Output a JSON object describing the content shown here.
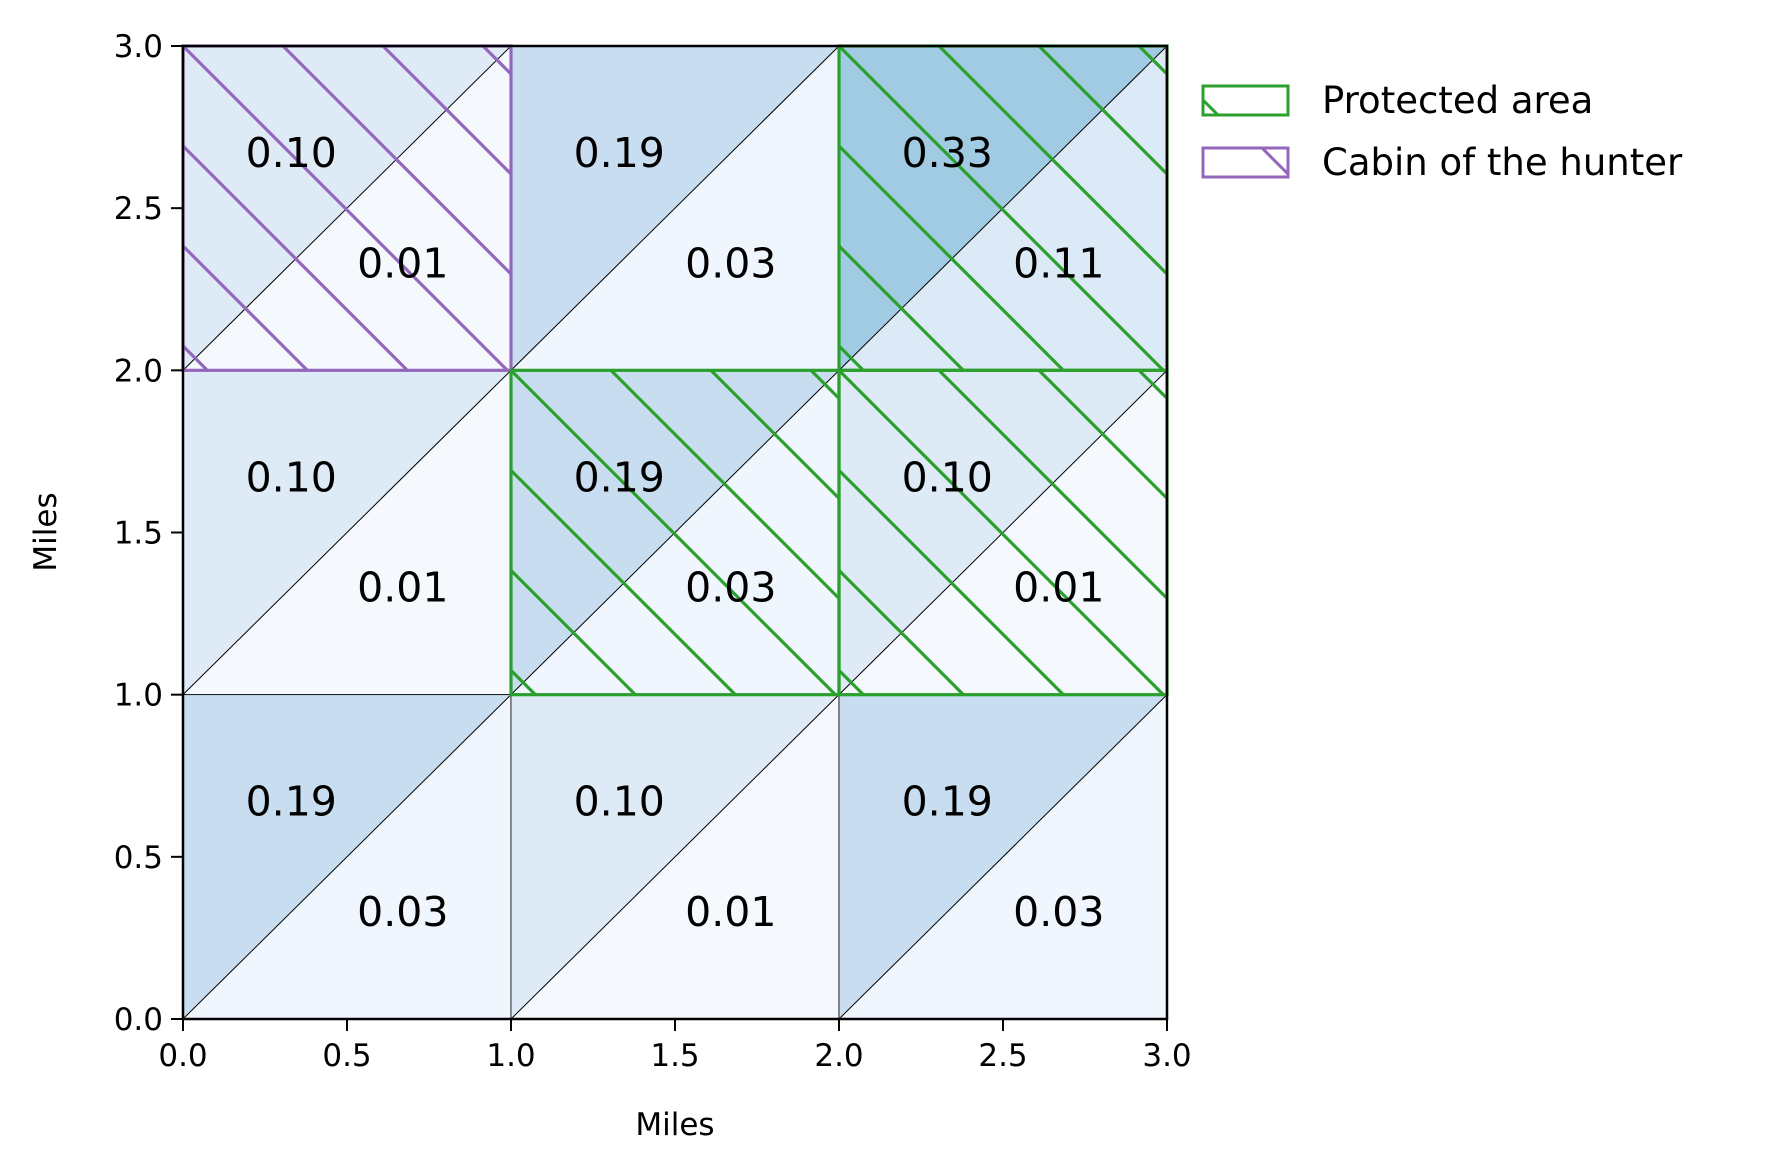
{
  "chart_data": {
    "type": "heatmap",
    "title": "",
    "xlabel": "Miles",
    "ylabel": "Miles",
    "xlim": [
      0,
      3
    ],
    "ylim": [
      0,
      3
    ],
    "xticks": [
      "0.0",
      "0.5",
      "1.0",
      "1.5",
      "2.0",
      "2.5",
      "3.0"
    ],
    "yticks": [
      "0.0",
      "0.5",
      "1.0",
      "1.5",
      "2.0",
      "2.5",
      "3.0"
    ],
    "grid": false,
    "legend_position": "outside-top-right",
    "note": "Each 1x1 mile cell split along its diagonal; upper-left triangle and lower-right triangle values",
    "cells": [
      {
        "x": 0,
        "y": 2,
        "upper": "0.10",
        "lower": "0.01",
        "upper_value": 0.1,
        "lower_value": 0.01,
        "region": "cabin"
      },
      {
        "x": 1,
        "y": 2,
        "upper": "0.19",
        "lower": "0.03",
        "upper_value": 0.19,
        "lower_value": 0.03,
        "region": ""
      },
      {
        "x": 2,
        "y": 2,
        "upper": "0.33",
        "lower": "0.11",
        "upper_value": 0.33,
        "lower_value": 0.11,
        "region": "protected"
      },
      {
        "x": 0,
        "y": 1,
        "upper": "0.10",
        "lower": "0.01",
        "upper_value": 0.1,
        "lower_value": 0.01,
        "region": ""
      },
      {
        "x": 1,
        "y": 1,
        "upper": "0.19",
        "lower": "0.03",
        "upper_value": 0.19,
        "lower_value": 0.03,
        "region": "protected"
      },
      {
        "x": 2,
        "y": 1,
        "upper": "0.10",
        "lower": "0.01",
        "upper_value": 0.1,
        "lower_value": 0.01,
        "region": "protected"
      },
      {
        "x": 0,
        "y": 0,
        "upper": "0.19",
        "lower": "0.03",
        "upper_value": 0.19,
        "lower_value": 0.03,
        "region": ""
      },
      {
        "x": 1,
        "y": 0,
        "upper": "0.10",
        "lower": "0.01",
        "upper_value": 0.1,
        "lower_value": 0.01,
        "region": ""
      },
      {
        "x": 2,
        "y": 0,
        "upper": "0.19",
        "lower": "0.03",
        "upper_value": 0.19,
        "lower_value": 0.03,
        "region": ""
      }
    ],
    "legend": [
      {
        "key": "protected",
        "label": "Protected area",
        "color": "#2ca02c"
      },
      {
        "key": "cabin",
        "label": "Cabin of the hunter",
        "color": "#9467bd"
      }
    ]
  }
}
